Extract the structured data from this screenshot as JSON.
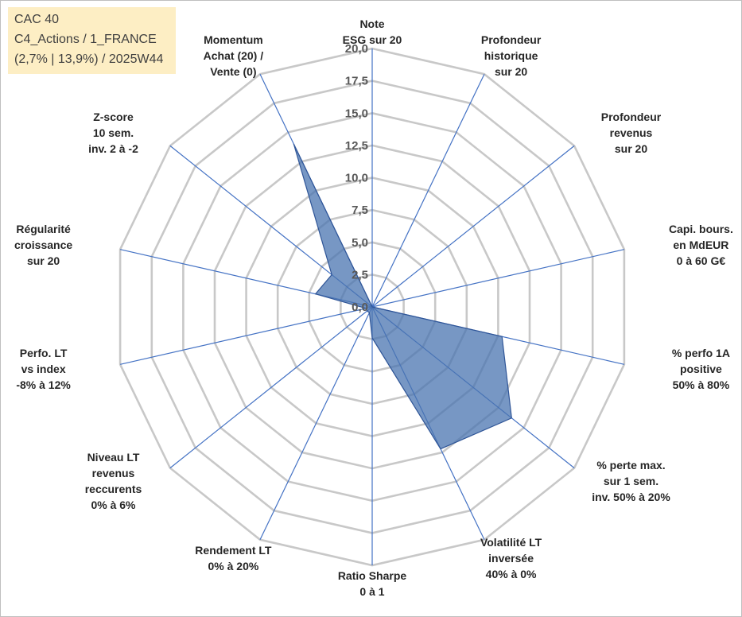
{
  "header_box": {
    "line1": "CAC 40",
    "line2": "C4_Actions / 1_FRANCE",
    "line3": "(2,7% | 13,9%) / 2025W44",
    "background": "#fdeec4"
  },
  "chart_data": {
    "type": "radar",
    "title": "",
    "rmin": 0,
    "rmax": 20,
    "tick_step": 2.5,
    "ticks": [
      "0,0",
      "2,5",
      "5,0",
      "7,5",
      "10,0",
      "12,5",
      "15,0",
      "17,5",
      "20,0"
    ],
    "ring_count": 8,
    "grid": true,
    "grid_color": "#c8c8c8",
    "spoke_color": "#4472c4",
    "fill_color": "#4a74b0",
    "outline_color": "#2f5597",
    "axes": [
      {
        "label": [
          "Note",
          "ESG sur 20"
        ],
        "value": 0
      },
      {
        "label": [
          "Profondeur",
          "historique",
          "sur 20"
        ],
        "value": 0
      },
      {
        "label": [
          "Profondeur",
          "revenus",
          "sur 20"
        ],
        "value": 0
      },
      {
        "label": [
          "Capi. bours.",
          "en MdEUR",
          "0 à 60 G€"
        ],
        "value": 0
      },
      {
        "label": [
          "% perfo 1A",
          "positive",
          "50% à 80%"
        ],
        "value": 10.3
      },
      {
        "label": [
          "% perte max.",
          "sur 1 sem.",
          "inv. 50% à 20%"
        ],
        "value": 13.8
      },
      {
        "label": [
          "Volatilité LT",
          "inversée",
          "40% à 0%"
        ],
        "value": 12.2
      },
      {
        "label": [
          "Ratio Sharpe",
          "0 à 1"
        ],
        "value": 2.4
      },
      {
        "label": [
          "Rendement LT",
          "0% à 20%"
        ],
        "value": 0.5
      },
      {
        "label": [
          "Niveau LT",
          "revenus",
          "reccurents",
          "0% à 6%"
        ],
        "value": 0.5
      },
      {
        "label": [
          "Perfo. LT",
          "vs index",
          "-8% à 12%"
        ],
        "value": 0.5
      },
      {
        "label": [
          "Régularité",
          "croissance",
          "sur 20"
        ],
        "value": 4.5
      },
      {
        "label": [
          "Z-score",
          "10 sem.",
          "inv. 2 à -2"
        ],
        "value": 4.0
      },
      {
        "label": [
          "Momentum",
          "Achat (20) /",
          "Vente (0)"
        ],
        "value": 14.0
      }
    ]
  }
}
